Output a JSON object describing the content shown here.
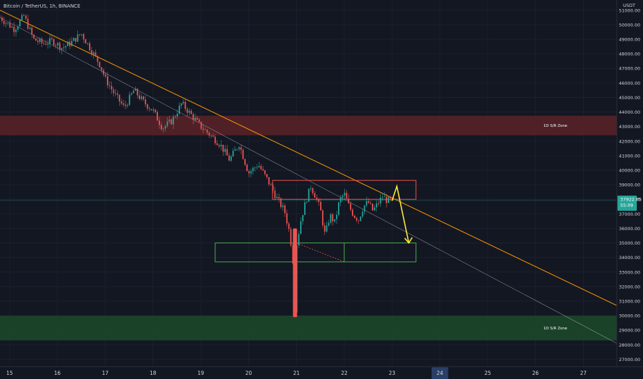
{
  "header": {
    "title": "Bitcoin / TetherUS, 1h, BINANCE"
  },
  "price_axis": {
    "currency": "USDT",
    "current_price": "37922.05",
    "countdown": "55:09",
    "ticks": [
      "51000.00",
      "50000.00",
      "49000.00",
      "48000.00",
      "47000.00",
      "46000.00",
      "45000.00",
      "44000.00",
      "43000.00",
      "42000.00",
      "41000.00",
      "40000.00",
      "39000.00",
      "38000.00",
      "37000.00",
      "36000.00",
      "35000.00",
      "34000.00",
      "33000.00",
      "32000.00",
      "31000.00",
      "30000.00",
      "29000.00",
      "28000.00",
      "27000.00"
    ]
  },
  "time_axis": {
    "ticks": [
      "15",
      "16",
      "17",
      "18",
      "19",
      "20",
      "21",
      "22",
      "23",
      "24",
      "25",
      "26",
      "27"
    ],
    "highlighted": "24"
  },
  "zones": {
    "upper": {
      "label": "1D S/R Zone",
      "low": 42400,
      "high": 43750,
      "color": "#5c2228"
    },
    "lower": {
      "label": "1D S/R Zone",
      "low": 28300,
      "high": 30000,
      "color": "#1c4a2a"
    }
  },
  "colors": {
    "up": "#26a69a",
    "down": "#ef5350",
    "trendline": "#ff9800",
    "channel": "#b2b5be",
    "arrow": "#ffeb3b",
    "price_tag": "#26a69a"
  },
  "chart_data": {
    "type": "candlestick",
    "title": "Bitcoin / TetherUS, 1h, BINANCE",
    "x_unit": "day of month (January 2022)",
    "xlim": [
      14.8,
      27.7
    ],
    "ylim": [
      26500,
      51700
    ],
    "close_path": [
      [
        14.8,
        50500
      ],
      [
        15.1,
        49700
      ],
      [
        15.3,
        50600
      ],
      [
        15.5,
        49000
      ],
      [
        15.7,
        48700
      ],
      [
        15.9,
        48900
      ],
      [
        16.1,
        48400
      ],
      [
        16.3,
        48800
      ],
      [
        16.5,
        49400
      ],
      [
        16.7,
        48300
      ],
      [
        16.9,
        47200
      ],
      [
        17.0,
        46300
      ],
      [
        17.2,
        45200
      ],
      [
        17.4,
        44300
      ],
      [
        17.6,
        45500
      ],
      [
        17.8,
        44700
      ],
      [
        18.0,
        44100
      ],
      [
        18.2,
        42900
      ],
      [
        18.4,
        43400
      ],
      [
        18.6,
        44600
      ],
      [
        18.8,
        43800
      ],
      [
        19.0,
        43000
      ],
      [
        19.2,
        42400
      ],
      [
        19.4,
        41800
      ],
      [
        19.6,
        40700
      ],
      [
        19.8,
        41800
      ],
      [
        20.0,
        39800
      ],
      [
        20.2,
        40400
      ],
      [
        20.4,
        39300
      ],
      [
        20.6,
        38000
      ],
      [
        20.75,
        37200
      ],
      [
        20.85,
        35800
      ],
      [
        20.92,
        34200
      ],
      [
        20.97,
        30200
      ],
      [
        21.0,
        34800
      ],
      [
        21.1,
        36700
      ],
      [
        21.2,
        37900
      ],
      [
        21.3,
        38900
      ],
      [
        21.4,
        38200
      ],
      [
        21.5,
        37300
      ],
      [
        21.6,
        35500
      ],
      [
        21.7,
        36900
      ],
      [
        21.8,
        36400
      ],
      [
        21.9,
        37900
      ],
      [
        22.0,
        38400
      ],
      [
        22.1,
        37500
      ],
      [
        22.2,
        36900
      ],
      [
        22.3,
        36600
      ],
      [
        22.4,
        37500
      ],
      [
        22.5,
        37800
      ],
      [
        22.6,
        37200
      ],
      [
        22.7,
        37700
      ],
      [
        22.8,
        38200
      ],
      [
        22.9,
        37900
      ],
      [
        22.97,
        37922
      ]
    ],
    "trendline": {
      "from": [
        14.8,
        51000
      ],
      "to": [
        27.7,
        30700
      ]
    },
    "channel_line": {
      "from": [
        14.8,
        50500
      ],
      "to": [
        27.7,
        28100
      ]
    },
    "rectangles": [
      {
        "role": "resistance box",
        "x": [
          20.5,
          23.5
        ],
        "y": [
          38000,
          39300
        ]
      },
      {
        "role": "support box",
        "x": [
          19.3,
          23.5
        ],
        "y": [
          33700,
          35000
        ]
      }
    ],
    "projection_arrow": {
      "path": [
        [
          23.0,
          37900
        ],
        [
          23.1,
          38900
        ],
        [
          23.35,
          35000
        ]
      ]
    },
    "current_price": 37922.05
  }
}
